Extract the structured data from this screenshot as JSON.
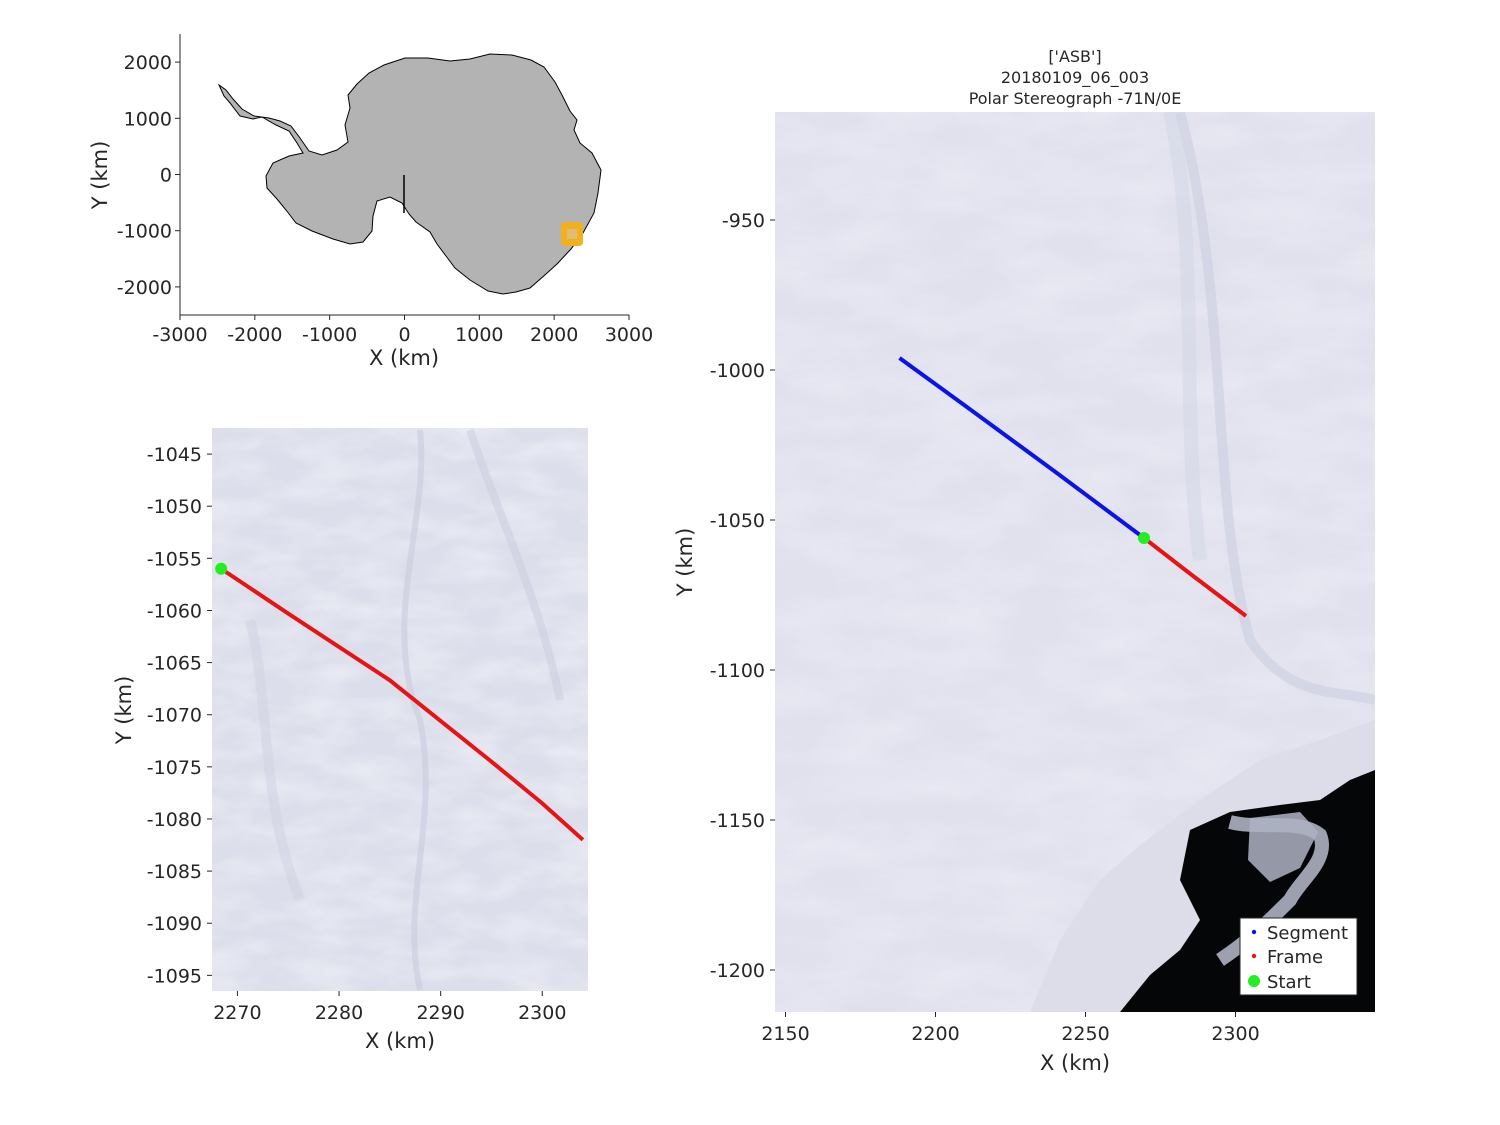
{
  "colors": {
    "segment": "#0a14e6",
    "frame": "#e61414",
    "start": "#22ee22",
    "land": "#b3b3b3",
    "location_marker": "#f2b01e",
    "ice": "#dfe0ec",
    "ocean": "#050608"
  },
  "overview": {
    "xlabel": "X (km)",
    "ylabel": "Y (km)",
    "xlim": [
      -3000,
      3000
    ],
    "ylim": [
      -2500,
      2500
    ],
    "xticks": [
      -3000,
      -2000,
      -1000,
      0,
      1000,
      2000,
      3000
    ],
    "yticks": [
      -2000,
      -1000,
      0,
      1000,
      2000
    ],
    "location_marker": {
      "x": 2270,
      "y": -1060
    },
    "reference_line": {
      "x": 0,
      "y_from": 0,
      "y_to": -680
    }
  },
  "zoom": {
    "xlabel": "X (km)",
    "ylabel": "Y (km)",
    "xlim": [
      2267.5,
      2304.5
    ],
    "ylim": [
      -1096.5,
      -1042.5
    ],
    "xticks": [
      2270,
      2280,
      2290,
      2300
    ],
    "yticks": [
      -1045,
      -1050,
      -1055,
      -1060,
      -1065,
      -1070,
      -1075,
      -1080,
      -1085,
      -1090,
      -1095
    ],
    "frame_line": [
      [
        2268.4,
        -1056.0
      ],
      [
        2275,
        -1060.3
      ],
      [
        2285,
        -1066.7
      ],
      [
        2295,
        -1074.5
      ],
      [
        2300,
        -1078.5
      ],
      [
        2304,
        -1082.0
      ]
    ],
    "start_point": {
      "x": 2268.4,
      "y": -1056.0
    }
  },
  "main": {
    "title": [
      "['ASB']",
      "20180109_06_003",
      "Polar Stereograph -71N/0E"
    ],
    "xlabel": "X (km)",
    "ylabel": "Y (km)",
    "xlim": [
      2146.5,
      2346.5
    ],
    "ylim": [
      -1214,
      -914
    ],
    "xticks": [
      2150,
      2200,
      2250,
      2300
    ],
    "yticks": [
      -950,
      -1000,
      -1050,
      -1100,
      -1150,
      -1200
    ],
    "segment_line": [
      [
        2188,
        -996
      ],
      [
        2210,
        -1012
      ],
      [
        2240,
        -1034
      ],
      [
        2269.5,
        -1056
      ]
    ],
    "frame_line": [
      [
        2269.5,
        -1056
      ],
      [
        2285,
        -1068
      ],
      [
        2303.5,
        -1082
      ]
    ],
    "start_point": {
      "x": 2269.5,
      "y": -1056
    },
    "legend": {
      "position": "bottom-right",
      "entries": [
        {
          "label": "Segment",
          "color_key": "segment",
          "marker": "dot"
        },
        {
          "label": "Frame",
          "color_key": "frame",
          "marker": "dot"
        },
        {
          "label": "Start",
          "color_key": "start",
          "marker": "hexagram"
        }
      ]
    }
  }
}
